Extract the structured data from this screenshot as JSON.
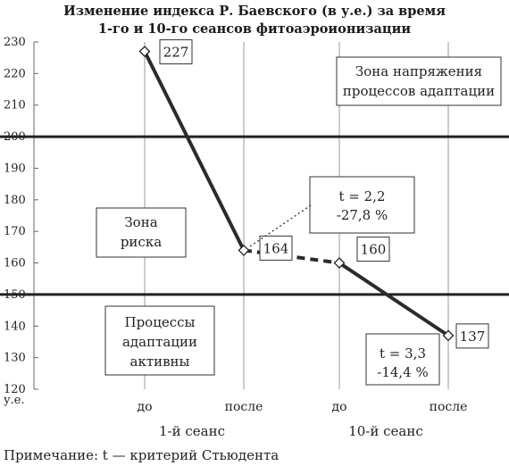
{
  "chart_data": {
    "type": "line",
    "title_lines": [
      "Изменение индекса Р. Баевского (в у.е.) за время",
      "1-го и 10-го сеансов фитоаэроионизации"
    ],
    "ylabel": "у.е.",
    "ylim": [
      120,
      230
    ],
    "yticks": [
      120,
      130,
      140,
      150,
      160,
      170,
      180,
      190,
      200,
      210,
      220,
      230
    ],
    "categories": [
      "до",
      "после",
      "до",
      "после"
    ],
    "groups": [
      "1-й сеанс",
      "10-й сеанс"
    ],
    "series": [
      {
        "values": [
          227,
          164,
          160,
          137
        ],
        "labels": [
          "227",
          "164",
          "160",
          "137"
        ]
      }
    ],
    "segment_styles": [
      "solid",
      "dashed",
      "solid"
    ],
    "thresholds": [
      200,
      150
    ],
    "zones": {
      "stress": [
        "Зона напряжения",
        "процессов адаптации"
      ],
      "risk": [
        "Зона",
        "риска"
      ],
      "active": [
        "Процессы",
        "адаптации",
        "активны"
      ]
    },
    "annotations": [
      {
        "lines": [
          "t = 2,2",
          "-27,8 %"
        ]
      },
      {
        "lines": [
          "t = 3,3",
          "-14,4 %"
        ]
      }
    ],
    "note": "Примечание: t — критерий Стьюдента",
    "grid": {
      "vertical": true,
      "horizontal": false
    },
    "colors": {
      "line": "#2b2b2b",
      "threshold": "#222222",
      "grid": "#9a9a9a"
    }
  }
}
